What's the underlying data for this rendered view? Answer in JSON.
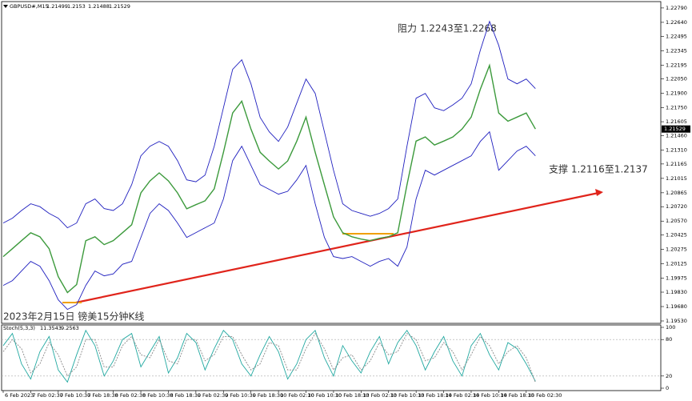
{
  "chart_data": [
    {
      "type": "line",
      "symbol": "GBPUSD#,M15",
      "ohlc": [
        1.21499,
        1.2153,
        1.21488,
        1.21529
      ],
      "title": "2023年2月15日 镑美15分钟K线",
      "annotations": [
        "阻力 1.2243至1.2268",
        "支撑 1.2116至1.2137"
      ],
      "categories": [
        "6 Feb 2023",
        null,
        null,
        "7 Feb 02:30",
        null,
        null,
        "7 Feb 10:30",
        null,
        null,
        "7 Feb 18:30",
        null,
        null,
        "8 Feb 02:30",
        null,
        null,
        "8 Feb 10:30",
        null,
        null,
        "8 Feb 18:30",
        null,
        null,
        "9 Feb 02:30",
        null,
        null,
        "9 Feb 10:30",
        null,
        null,
        "9 Feb 18:30",
        null,
        null,
        "10 Feb 02:30",
        null,
        null,
        "10 Feb 10:30",
        null,
        null,
        "10 Feb 18:30",
        null,
        null,
        "13 Feb 02:30",
        null,
        null,
        "13 Feb 10:30",
        null,
        null,
        "13 Feb 18:30",
        null,
        null,
        "14 Feb 02:30",
        null,
        null,
        "14 Feb 10:30",
        null,
        null,
        "14 Feb 18:30",
        null,
        null,
        "15 Feb 02:30",
        null
      ],
      "series": [
        {
          "name": "Close",
          "color": "#3c9a3c",
          "values": [
            1.202,
            1.20283,
            1.20366,
            1.20449,
            1.20407,
            1.20283,
            1.19992,
            1.19826,
            1.19909,
            1.20366,
            1.20407,
            1.20325,
            1.20366,
            1.20449,
            1.20532,
            1.20864,
            1.20989,
            1.21072,
            1.20989,
            1.20864,
            1.20698,
            1.20741,
            1.20781,
            1.20906,
            1.21286,
            1.21696,
            1.21819,
            1.21528,
            1.21286,
            1.21196,
            1.21113,
            1.21196,
            1.21403,
            1.21653,
            1.21286,
            1.20947,
            1.20615,
            1.20449,
            1.20407,
            1.20383,
            1.20366,
            1.20391,
            1.20407,
            1.20449,
            1.20947,
            1.21403,
            1.21446,
            1.21362,
            1.21403,
            1.21446,
            1.21528,
            1.21653,
            1.21943,
            1.22192,
            1.21696,
            1.21611,
            1.21653,
            1.21696,
            1.21529
          ]
        },
        {
          "name": "Upper",
          "color": "#1f1fbf",
          "values": [
            1.2055,
            1.206,
            1.2068,
            1.2075,
            1.2072,
            1.2065,
            1.206,
            1.205,
            1.2055,
            1.2075,
            1.208,
            1.207,
            1.2068,
            1.2075,
            1.2095,
            1.2125,
            1.2135,
            1.214,
            1.2135,
            1.212,
            1.21,
            1.2098,
            1.2105,
            1.2135,
            1.2175,
            1.2215,
            1.2225,
            1.22,
            1.2165,
            1.215,
            1.214,
            1.2155,
            1.218,
            1.2205,
            1.219,
            1.215,
            1.211,
            1.2075,
            1.2068,
            1.2065,
            1.2062,
            1.2065,
            1.207,
            1.208,
            1.2135,
            1.2185,
            1.219,
            1.2175,
            1.2172,
            1.2178,
            1.2185,
            1.22,
            1.2235,
            1.2265,
            1.224,
            1.2205,
            1.22,
            1.2205,
            1.2195
          ]
        },
        {
          "name": "Lower",
          "color": "#1f1fbf",
          "values": [
            1.199,
            1.1995,
            1.2005,
            1.2015,
            1.201,
            1.1995,
            1.1975,
            1.1965,
            1.197,
            1.199,
            1.2005,
            1.2,
            1.2002,
            1.2012,
            1.2015,
            1.204,
            1.2065,
            1.2075,
            1.2068,
            1.2055,
            1.204,
            1.2045,
            1.205,
            1.2055,
            1.208,
            1.212,
            1.2135,
            1.2115,
            1.2095,
            1.209,
            1.2085,
            1.2088,
            1.21,
            1.2115,
            1.2075,
            1.204,
            1.202,
            1.2018,
            1.202,
            1.2015,
            1.201,
            1.2015,
            1.2018,
            1.201,
            1.203,
            1.208,
            1.211,
            1.2105,
            1.211,
            1.2115,
            1.212,
            1.2125,
            1.214,
            1.215,
            1.211,
            1.212,
            1.213,
            1.2135,
            1.2125
          ]
        }
      ],
      "ylim": [
        1.19505,
        1.22856
      ],
      "yticks": [
        {
          "value": 1.2279,
          "label": "1.22790"
        },
        {
          "value": 1.2264,
          "label": "1.22640"
        },
        1.22495,
        1.22345,
        1.22195,
        {
          "value": 1.2205,
          "label": "1.22050"
        },
        {
          "value": 1.219,
          "label": "1.21900"
        },
        {
          "value": 1.2175,
          "label": "1.21750"
        },
        1.21605,
        {
          "value": 1.2146,
          "label": "1.21460"
        },
        {
          "value": 1.2131,
          "label": "1.21310"
        },
        1.21165,
        1.21015,
        1.20865,
        {
          "value": 1.2072,
          "label": "1.20720"
        },
        {
          "value": 1.2057,
          "label": "1.20570"
        },
        1.20425,
        1.20275,
        1.20125,
        1.19975,
        {
          "value": 1.1983,
          "label": "1.19830"
        },
        {
          "value": 1.1968,
          "label": "1.19680"
        },
        {
          "value": 1.1953,
          "label": "1.19530"
        }
      ]
    },
    {
      "type": "line",
      "name": "Stoch(5,3,3)",
      "series": [
        {
          "name": "Main",
          "color": "#20a8a0",
          "dash": false,
          "values": [
            70,
            90,
            40,
            15,
            60,
            85,
            30,
            10,
            55,
            95,
            70,
            20,
            45,
            80,
            90,
            35,
            60,
            85,
            25,
            50,
            90,
            75,
            30,
            65,
            95,
            80,
            40,
            20,
            55,
            85,
            60,
            15,
            40,
            80,
            95,
            50,
            20,
            70,
            45,
            25,
            60,
            85,
            40,
            75,
            95,
            70,
            30,
            60,
            85,
            45,
            20,
            70,
            90,
            55,
            30,
            75,
            65,
            40,
            11.3543
          ]
        },
        {
          "name": "Signal",
          "color": "#888888",
          "dash": true,
          "values": [
            60,
            80,
            65,
            25,
            40,
            75,
            55,
            20,
            35,
            80,
            80,
            35,
            35,
            70,
            85,
            55,
            50,
            80,
            45,
            40,
            80,
            80,
            45,
            55,
            85,
            85,
            55,
            30,
            40,
            75,
            70,
            30,
            30,
            65,
            90,
            65,
            30,
            50,
            55,
            30,
            45,
            75,
            55,
            60,
            90,
            80,
            45,
            50,
            75,
            60,
            30,
            55,
            85,
            70,
            40,
            60,
            70,
            50,
            9.2563
          ]
        }
      ],
      "ylim": [
        0,
        100
      ],
      "yticks": [
        100,
        80,
        20,
        0
      ]
    }
  ]
}
